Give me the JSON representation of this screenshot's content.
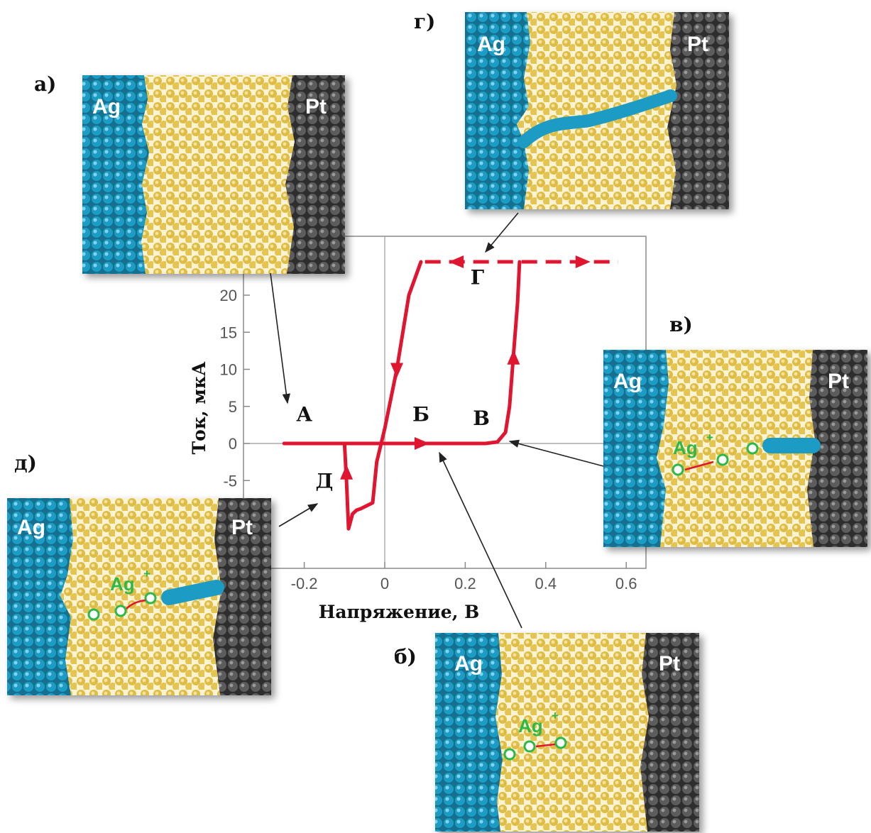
{
  "chart_data": {
    "type": "line",
    "xlabel": "Напряжение, В",
    "ylabel": "Ток, мкА",
    "xlim": [
      -0.3,
      0.65
    ],
    "ylim": [
      -10,
      28
    ],
    "x_ticks": [
      "-0.2",
      "0",
      "0.2",
      "0.4",
      "0.6"
    ],
    "x_tick_values": [
      -0.2,
      0,
      0.2,
      0.4,
      0.6
    ],
    "y_ticks": [
      "-5",
      "0",
      "5",
      "10",
      "15",
      "20"
    ],
    "y_tick_values": [
      -5,
      0,
      5,
      10,
      15,
      20
    ],
    "series": [
      {
        "x": [
          -0.25,
          0.08,
          0.25,
          0.28,
          0.3,
          0.31,
          0.32,
          0.33,
          0.335
        ],
        "y": [
          0,
          0,
          0,
          0.2,
          1.5,
          5,
          12,
          19,
          24.5
        ],
        "color": "#e0152f"
      },
      {
        "x": [
          0.1,
          0.58
        ],
        "y": [
          24.5,
          24.5
        ],
        "dashed": true,
        "color": "#e0152f"
      },
      {
        "x": [
          0.09,
          0.06,
          0.03,
          0.0,
          -0.02,
          -0.03,
          -0.06,
          -0.07,
          -0.08,
          -0.09,
          -0.095,
          -0.1,
          -0.25
        ],
        "y": [
          24.5,
          20,
          10,
          2,
          -2.5,
          -8,
          -8.8,
          -9,
          -9.5,
          -11.5,
          -5,
          0,
          0
        ],
        "color": "#e0152f"
      }
    ],
    "arrow_marks": [
      {
        "x": 0.09,
        "y": 0,
        "dir": "right"
      },
      {
        "x": 0.32,
        "y": 11.5,
        "dir": "up"
      },
      {
        "x": 0.03,
        "y": 10,
        "dir": "down"
      },
      {
        "x": -0.095,
        "y": -4,
        "dir": "up"
      },
      {
        "x": 0.18,
        "y": 24.5,
        "dir": "left"
      },
      {
        "x": 0.49,
        "y": 24.5,
        "dir": "right"
      }
    ],
    "point_labels": [
      {
        "text": "А",
        "x": -0.2,
        "y": 3
      },
      {
        "text": "Б",
        "x": 0.09,
        "y": 3
      },
      {
        "text": "В",
        "x": 0.24,
        "y": 2.5
      },
      {
        "text": "Г",
        "x": 0.23,
        "y": 21.5
      },
      {
        "text": "Д",
        "x": -0.15,
        "y": -6
      }
    ]
  },
  "panels": [
    {
      "letter": "а)",
      "left": "Ag",
      "right": "Pt",
      "ion": ""
    },
    {
      "letter": "б)",
      "left": "Ag",
      "right": "Pt",
      "ion": "Ag"
    },
    {
      "letter": "в)",
      "left": "Ag",
      "right": "Pt",
      "ion": "Ag"
    },
    {
      "letter": "г)",
      "left": "Ag",
      "right": "Pt",
      "ion": ""
    },
    {
      "letter": "д)",
      "left": "Ag",
      "right": "Pt",
      "ion": "Ag"
    }
  ],
  "ion_charge": "+",
  "colors": {
    "curve": "#e0152f",
    "silver": "#1a93b8",
    "electrolyte": "#e3c451",
    "platinum": "#555555",
    "ion": "#2db84a"
  }
}
